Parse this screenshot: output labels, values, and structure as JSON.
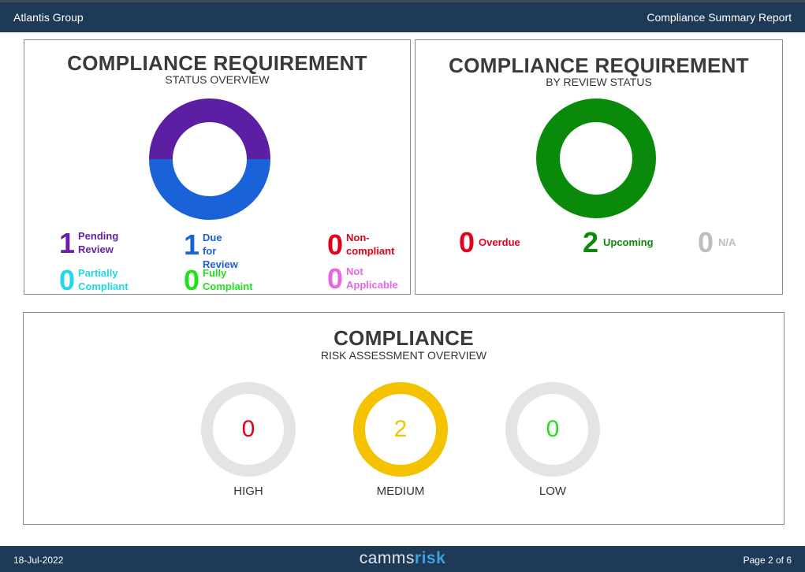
{
  "header": {
    "org": "Atlantis Group",
    "report_title": "Compliance Summary Report"
  },
  "status_overview": {
    "title": "COMPLIANCE REQUIREMENT",
    "subtitle": "STATUS OVERVIEW",
    "stats": [
      {
        "count": "1",
        "label_line1": "Pending",
        "label_line2": "Review",
        "color": "#6a1fa6"
      },
      {
        "count": "1",
        "label_line1": "Due for",
        "label_line2": "Review",
        "color": "#1a62d8"
      },
      {
        "count": "0",
        "label_line1": "Non-",
        "label_line2": "compliant",
        "color": "#e3001b"
      },
      {
        "count": "0",
        "label_line1": "Partially",
        "label_line2": "Compliant",
        "color": "#1fd9e6"
      },
      {
        "count": "0",
        "label_line1": "Fully",
        "label_line2": "Complaint",
        "color": "#23e01f"
      },
      {
        "count": "0",
        "label_line1": "Not",
        "label_line2": "Applicable",
        "color": "#e667e0"
      }
    ],
    "donut": [
      {
        "label": "Pending Review",
        "value": 1,
        "color": "#5c1fa3"
      },
      {
        "label": "Due for Review",
        "value": 1,
        "color": "#1a62d8"
      }
    ]
  },
  "review_status": {
    "title": "COMPLIANCE REQUIREMENT",
    "subtitle": "BY REVIEW STATUS",
    "stats": [
      {
        "count": "0",
        "label": "Overdue",
        "color": "#e3001b"
      },
      {
        "count": "2",
        "label": "Upcoming",
        "color": "#0a8a0a"
      },
      {
        "count": "0",
        "label": "N/A",
        "color": "#bdbdbd"
      }
    ],
    "donut": [
      {
        "label": "Upcoming",
        "value": 2,
        "color": "#0a8a0a"
      }
    ]
  },
  "risk_overview": {
    "title": "COMPLIANCE",
    "subtitle": "RISK ASSESSMENT OVERVIEW",
    "rings": [
      {
        "value": "0",
        "label": "HIGH",
        "color": "#e3001b",
        "ring_color": "#e4e4e4"
      },
      {
        "value": "2",
        "label": "MEDIUM",
        "color": "#f5c200",
        "ring_color": "#f5c200"
      },
      {
        "value": "0",
        "label": "LOW",
        "color": "#23e01f",
        "ring_color": "#e4e4e4"
      }
    ]
  },
  "footer": {
    "date": "18-Jul-2022",
    "brand_part1": "camms",
    "brand_part2": "risk",
    "page": "Page 2 of 6"
  }
}
